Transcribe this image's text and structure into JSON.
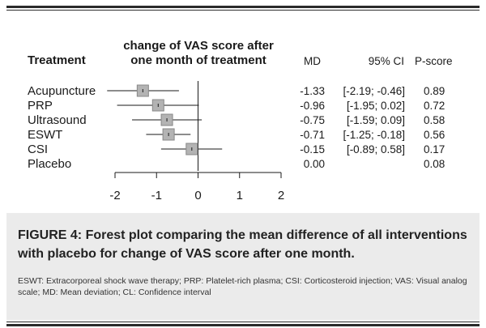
{
  "chart_data": {
    "type": "forest",
    "column_headers": {
      "treatment": "Treatment",
      "plot_title_line1": "change of VAS score after",
      "plot_title_line2": "one month of treatment",
      "md": "MD",
      "ci": "95% CI",
      "p_score": "P-score"
    },
    "rows": [
      {
        "treatment": "Acupuncture",
        "md": -1.33,
        "lower": -2.19,
        "upper": -0.46,
        "md_text": "-1.33",
        "ci_text": "[-2.19; -0.46]",
        "p_score": "0.89"
      },
      {
        "treatment": "PRP",
        "md": -0.96,
        "lower": -1.95,
        "upper": 0.02,
        "md_text": "-0.96",
        "ci_text": "[-1.95;  0.02]",
        "p_score": "0.72"
      },
      {
        "treatment": "Ultrasound",
        "md": -0.75,
        "lower": -1.59,
        "upper": 0.09,
        "md_text": "-0.75",
        "ci_text": "[-1.59;  0.09]",
        "p_score": "0.58"
      },
      {
        "treatment": "ESWT",
        "md": -0.71,
        "lower": -1.25,
        "upper": -0.18,
        "md_text": "-0.71",
        "ci_text": "[-1.25; -0.18]",
        "p_score": "0.56"
      },
      {
        "treatment": "CSI",
        "md": -0.15,
        "lower": -0.89,
        "upper": 0.58,
        "md_text": "-0.15",
        "ci_text": "[-0.89;  0.58]",
        "p_score": "0.17"
      },
      {
        "treatment": "Placebo",
        "md": null,
        "lower": null,
        "upper": null,
        "md_text": "0.00",
        "ci_text": "",
        "p_score": "0.08"
      }
    ],
    "xlim": [
      -2,
      2
    ],
    "x_ticks": [
      -2,
      -1,
      0,
      1,
      2
    ],
    "x_tick_labels": [
      "-2",
      "-1",
      "0",
      "1",
      "2"
    ],
    "reference_line": 0
  },
  "caption": {
    "title": "FIGURE 4: Forest plot comparing the mean difference of all interventions with placebo for change of VAS score after one month.",
    "note": "ESWT: Extracorporeal shock wave therapy; PRP: Platelet-rich plasma; CSI: Corticosteroid injection; VAS: Visual analog scale; MD: Mean deviation; CL: Confidence interval"
  },
  "colors": {
    "box_fill": "#b3b3b3",
    "box_stroke": "#888888",
    "line": "#1a1a1a",
    "caption_bg": "#ebebeb"
  }
}
